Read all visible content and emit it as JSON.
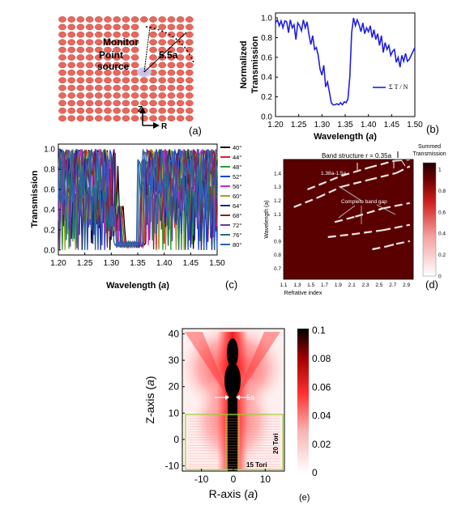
{
  "panels": {
    "a": {
      "letter": "(a)",
      "monitor_label": "Monitor",
      "source_label_line1": "Point",
      "source_label_line2": "source",
      "distance_label": "5.5a",
      "z_label": "Z",
      "r_label": "R",
      "colors": {
        "torus": "#e8675c",
        "torus_edge": "#b84a42",
        "source": "#b8b8e8"
      }
    },
    "b": {
      "letter": "(b)",
      "ylabel_line1": "Normalized",
      "ylabel_line2": "Transmission",
      "xlabel": "Wavelength (",
      "xlabel_italic": "a",
      "xlabel_end": ")",
      "legend_formula": "Σ T / N",
      "color": "#2020e0"
    },
    "c": {
      "letter": "(c)",
      "ylabel": "Transmission",
      "xlabel": "Wavelength (",
      "xlabel_italic": "a",
      "xlabel_end": ")"
    },
    "d": {
      "letter": "(d)",
      "title": "Band structure  r = 0.35a",
      "ylabel": "Wavelength (a)",
      "xlabel": "Refrative index",
      "colorbar_title_line1": "Summed",
      "colorbar_title_line2": "Transmission",
      "annot_width": "1.38a-1.5a",
      "annot_gap": "Complete band gap",
      "colors": {
        "background": "#5a0000",
        "band": "#ffffff"
      }
    },
    "e": {
      "letter": "(e)",
      "ylabel": "Z-axis (",
      "ylabel_italic": "a",
      "ylabel_end": ")",
      "xlabel": "R-axis (",
      "xlabel_italic": "a",
      "xlabel_end": ")",
      "label_5a": "5a",
      "label_20tori": "20 Tori",
      "label_15tori": "15 Tori",
      "box_color": "#9acd32"
    }
  },
  "chart_data": [
    {
      "id": "b",
      "type": "line",
      "title": "",
      "xlabel": "Wavelength (a)",
      "ylabel": "Normalized Transmission",
      "xlim": [
        1.2,
        1.5
      ],
      "ylim": [
        0.0,
        1.05
      ],
      "xticks": [
        "1.20",
        "1.25",
        "1.30",
        "1.35",
        "1.40",
        "1.45",
        "1.50"
      ],
      "yticks": [
        "0.0",
        "0.2",
        "0.4",
        "0.6",
        "0.8",
        "1.0"
      ],
      "series": [
        {
          "x": [
            1.2,
            1.204,
            1.208,
            1.212,
            1.216,
            1.22,
            1.224,
            1.228,
            1.232,
            1.236,
            1.24,
            1.244,
            1.248,
            1.252,
            1.256,
            1.26,
            1.264,
            1.268,
            1.272,
            1.276,
            1.28,
            1.284,
            1.288,
            1.292,
            1.296,
            1.3,
            1.304,
            1.308,
            1.312,
            1.316,
            1.32,
            1.324,
            1.328,
            1.332,
            1.336,
            1.34,
            1.344,
            1.348,
            1.352,
            1.356,
            1.36,
            1.364,
            1.368,
            1.372,
            1.376,
            1.38,
            1.384,
            1.388,
            1.392,
            1.396,
            1.4,
            1.404,
            1.408,
            1.412,
            1.416,
            1.42,
            1.424,
            1.428,
            1.432,
            1.436,
            1.44,
            1.444,
            1.448,
            1.452,
            1.456,
            1.46,
            1.464,
            1.468,
            1.472,
            1.476,
            1.48,
            1.484,
            1.488,
            1.492,
            1.496,
            1.5
          ],
          "y": [
            0.95,
            0.98,
            0.92,
            0.97,
            0.9,
            0.97,
            0.96,
            0.85,
            0.98,
            0.9,
            0.93,
            0.78,
            0.95,
            0.92,
            0.87,
            0.98,
            0.9,
            0.96,
            0.83,
            0.73,
            0.82,
            0.68,
            0.7,
            0.62,
            0.48,
            0.42,
            0.52,
            0.3,
            0.35,
            0.25,
            0.14,
            0.12,
            0.12,
            0.13,
            0.12,
            0.14,
            0.12,
            0.15,
            0.14,
            0.18,
            0.4,
            0.85,
            1.0,
            0.92,
            0.98,
            0.93,
            0.86,
            0.95,
            0.84,
            0.9,
            0.86,
            0.92,
            0.8,
            0.88,
            0.78,
            0.84,
            0.72,
            0.82,
            0.65,
            0.75,
            0.68,
            0.72,
            0.62,
            0.66,
            0.68,
            0.55,
            0.6,
            0.5,
            0.62,
            0.56,
            0.64,
            0.56,
            0.58,
            0.62,
            0.66,
            0.7
          ]
        }
      ]
    },
    {
      "id": "c",
      "type": "line",
      "title": "",
      "xlabel": "Wavelength (a)",
      "ylabel": "Transmission",
      "xlim": [
        1.2,
        1.5
      ],
      "ylim": [
        -0.05,
        1.05
      ],
      "xticks": [
        "1.20",
        "1.25",
        "1.30",
        "1.35",
        "1.40",
        "1.45",
        "1.50"
      ],
      "yticks": [
        "0.0",
        "0.2",
        "0.4",
        "0.6",
        "0.8",
        "1.0"
      ],
      "series": [
        {
          "name": "40°",
          "color": "#000000",
          "gap": [
            1.318,
            1.372
          ],
          "phase": 0
        },
        {
          "name": "44°",
          "color": "#e0202a",
          "gap": [
            1.315,
            1.37
          ],
          "phase": 1
        },
        {
          "name": "48°",
          "color": "#2aa02a",
          "gap": [
            1.312,
            1.368
          ],
          "phase": 2
        },
        {
          "name": "52°",
          "color": "#2040e0",
          "gap": [
            1.308,
            1.366
          ],
          "phase": 3
        },
        {
          "name": "56°",
          "color": "#e020c0",
          "gap": [
            1.306,
            1.364
          ],
          "phase": 4
        },
        {
          "name": "60°",
          "color": "#a0a020",
          "gap": [
            1.304,
            1.365
          ],
          "phase": 5
        },
        {
          "name": "64°",
          "color": "#20208a",
          "gap": [
            1.31,
            1.362
          ],
          "phase": 6
        },
        {
          "name": "68°",
          "color": "#8a2020",
          "gap": [
            1.302,
            1.36
          ],
          "phase": 7
        },
        {
          "name": "72°",
          "color": "#6a3aa0",
          "gap": [
            1.3,
            1.362
          ],
          "phase": 8
        },
        {
          "name": "76°",
          "color": "#207070",
          "gap": [
            1.296,
            1.358
          ],
          "phase": 9
        },
        {
          "name": "80°",
          "color": "#3060c0",
          "gap": [
            1.3,
            1.355
          ],
          "phase": 10
        }
      ]
    },
    {
      "id": "d",
      "type": "heatmap",
      "title": "Band structure  r = 0.35a",
      "xlabel": "Refrative index",
      "ylabel": "Wavelength (a)",
      "xlim": [
        1.1,
        3.0
      ],
      "ylim": [
        0.62,
        1.5
      ],
      "xticks": [
        "1.1",
        "1.3",
        "1.5",
        "1.7",
        "1.9",
        "2.1",
        "2.3",
        "2.5",
        "2.7",
        "2.9"
      ],
      "yticks": [
        "0.7",
        "0.8",
        "0.9",
        "1",
        "1.1",
        "1.2",
        "1.3",
        "1.4"
      ],
      "colorbar_ticks": [
        "1",
        "0.8",
        "0.6",
        "0.4",
        "0.2",
        "0"
      ],
      "bands": [
        {
          "x": [
            1.45,
            1.95,
            2.35,
            2.72,
            2.95
          ],
          "y": [
            1.28,
            1.38,
            1.44,
            1.49,
            1.5
          ]
        },
        {
          "x": [
            1.25,
            1.6,
            1.95,
            2.35,
            2.75,
            2.95
          ],
          "y": [
            1.15,
            1.22,
            1.3,
            1.35,
            1.4,
            1.45
          ]
        },
        {
          "x": [
            1.85,
            2.15,
            2.55,
            2.95
          ],
          "y": [
            1.04,
            1.08,
            1.14,
            1.18
          ]
        },
        {
          "x": [
            1.75,
            2.1,
            2.55,
            2.95
          ],
          "y": [
            0.93,
            0.95,
            0.98,
            1.02
          ]
        },
        {
          "x": [
            2.4,
            2.6,
            2.75,
            2.95
          ],
          "y": [
            0.84,
            0.86,
            0.88,
            0.9
          ]
        }
      ]
    },
    {
      "id": "e",
      "type": "heatmap",
      "title": "",
      "xlabel": "R-axis (a)",
      "ylabel": "Z-axis (a)",
      "xlim": [
        -16,
        16
      ],
      "ylim": [
        -12,
        42
      ],
      "xticks": [
        "-10",
        "0",
        "10"
      ],
      "yticks": [
        "-10",
        "0",
        "10",
        "20",
        "30",
        "40"
      ],
      "colorbar_ticks": [
        "0.1",
        "0.08",
        "0.06",
        "0.04",
        "0.02",
        "0"
      ]
    }
  ]
}
